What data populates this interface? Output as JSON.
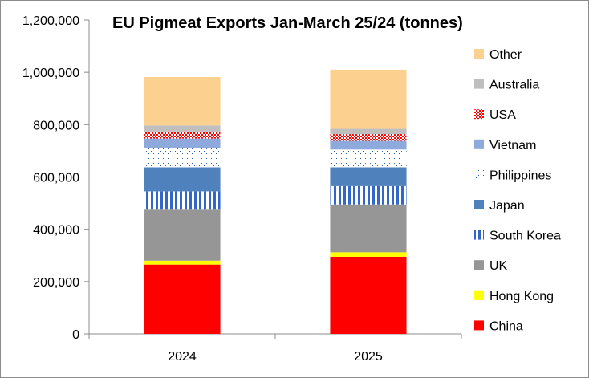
{
  "chart_data": {
    "type": "bar",
    "stacked": true,
    "title": "EU Pigmeat Exports Jan-March 25/24  (tonnes)",
    "xlabel": "",
    "ylabel": "",
    "ylim": [
      0,
      1200000
    ],
    "yticks": [
      0,
      200000,
      400000,
      600000,
      800000,
      1000000,
      1200000
    ],
    "ytick_labels": [
      "0",
      "200,000",
      "400,000",
      "600,000",
      "800,000",
      "1,000,000",
      "1,200,000"
    ],
    "grid": false,
    "legend_position": "right",
    "categories": [
      "2024",
      "2025"
    ],
    "series": [
      {
        "name": "China",
        "values": [
          265000,
          295000
        ],
        "color": "#ff0000",
        "pattern": "solid"
      },
      {
        "name": "Hong Kong",
        "values": [
          15000,
          17000
        ],
        "color": "#ffff00",
        "pattern": "solid"
      },
      {
        "name": "UK",
        "values": [
          195000,
          183000
        ],
        "color": "#969696",
        "pattern": "solid"
      },
      {
        "name": "South Korea",
        "values": [
          70000,
          70000
        ],
        "color": "#3366cc",
        "pattern": "vstripes"
      },
      {
        "name": "Japan",
        "values": [
          92000,
          72000
        ],
        "color": "#4f81bd",
        "pattern": "solid"
      },
      {
        "name": "Philippines",
        "values": [
          73000,
          68000
        ],
        "color": "#2e5fa8",
        "pattern": "dots"
      },
      {
        "name": "Vietnam",
        "values": [
          37000,
          33000
        ],
        "color": "#8ea9db",
        "pattern": "solid"
      },
      {
        "name": "USA",
        "values": [
          27000,
          26000
        ],
        "color": "#ff0000",
        "pattern": "checker"
      },
      {
        "name": "Australia",
        "values": [
          23000,
          20000
        ],
        "color": "#bfbfbf",
        "pattern": "solid"
      },
      {
        "name": "Other",
        "values": [
          185000,
          226000
        ],
        "color": "#fcd18f",
        "pattern": "solid"
      }
    ]
  }
}
